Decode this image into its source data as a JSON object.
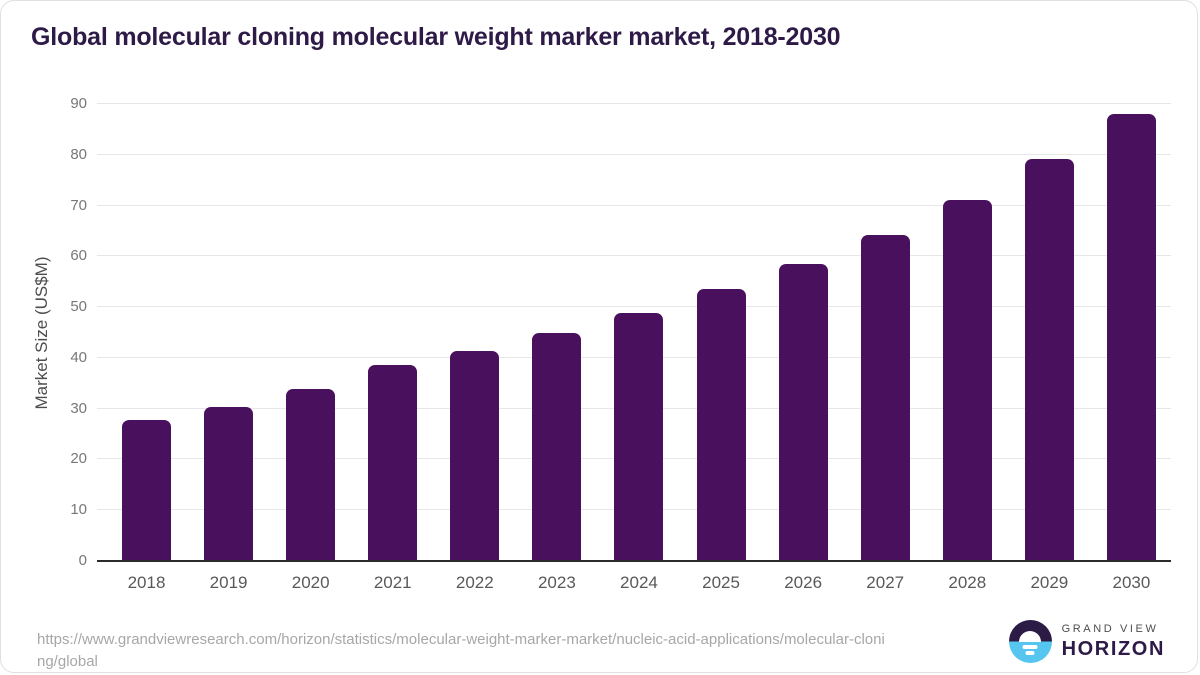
{
  "title": "Global molecular cloning molecular weight marker market, 2018-2030",
  "colors": {
    "bar": "#49115d",
    "title_text": "#2e1a47",
    "gridline": "#e7e7e7",
    "axis_line": "#2b2b2b",
    "ytick_text": "#76777a",
    "xtick_text": "#58595b",
    "url_text": "#a7a7a7",
    "logo_purple": "#2b1b45",
    "logo_blue": "#56c5f0"
  },
  "chart_data": {
    "type": "bar",
    "title": "Global molecular cloning molecular weight marker market, 2018-2030",
    "categories": [
      "2018",
      "2019",
      "2020",
      "2021",
      "2022",
      "2023",
      "2024",
      "2025",
      "2026",
      "2027",
      "2028",
      "2029",
      "2030"
    ],
    "values": [
      27.7,
      30.3,
      33.9,
      38.6,
      41.4,
      45.0,
      48.9,
      53.5,
      58.5,
      64.2,
      71.1,
      79.1,
      88.1
    ],
    "xlabel": "",
    "ylabel": "Market Size (US$M)",
    "ylim": [
      0,
      90
    ],
    "yticks": [
      0,
      10,
      20,
      30,
      40,
      50,
      60,
      70,
      80,
      90
    ],
    "grid": true,
    "legend": false,
    "bar_color": "#49115d"
  },
  "footer": {
    "url_line1": "https://www.grandviewresearch.com/horizon/statistics/molecular-weight-marker-market/nucleic-acid-applications/molecular-cloni",
    "url_line2": "ng/global",
    "logo": {
      "top_text": "GRAND VIEW",
      "bottom_text": "HORIZON"
    }
  }
}
